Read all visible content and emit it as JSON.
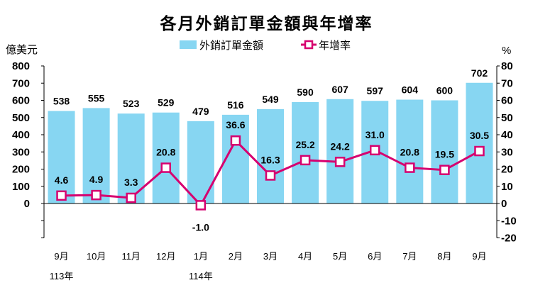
{
  "chart_data": {
    "type": "bar+line",
    "title": "各月外銷訂單金額與年增率",
    "categories": [
      "9月",
      "10月",
      "11月",
      "12月",
      "1月",
      "2月",
      "3月",
      "4月",
      "5月",
      "6月",
      "7月",
      "8月",
      "9月"
    ],
    "year_labels": [
      {
        "index": 0,
        "label": "113年"
      },
      {
        "index": 4,
        "label": "114年"
      }
    ],
    "series": [
      {
        "name": "外銷訂單金額",
        "type": "bar",
        "axis": "left",
        "color": "#87d6f2",
        "values": [
          538,
          555,
          523,
          529,
          479,
          516,
          549,
          590,
          607,
          597,
          604,
          600,
          702
        ]
      },
      {
        "name": "年增率",
        "type": "line",
        "axis": "right",
        "color": "#d6006f",
        "values": [
          4.6,
          4.9,
          3.3,
          20.8,
          -1.0,
          36.6,
          16.3,
          25.2,
          24.2,
          31.0,
          20.8,
          19.5,
          30.5
        ]
      }
    ],
    "left_axis": {
      "label": "億美元",
      "range": [
        -200,
        800
      ],
      "ticks": [
        0,
        100,
        200,
        300,
        400,
        500,
        600,
        700,
        800
      ]
    },
    "right_axis": {
      "label": "%",
      "range": [
        -20,
        80
      ],
      "ticks": [
        -20,
        -10,
        0,
        10,
        20,
        30,
        40,
        50,
        60,
        70,
        80
      ]
    },
    "legend": {
      "placement": "top-center"
    }
  }
}
